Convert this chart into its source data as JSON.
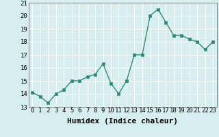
{
  "x": [
    0,
    1,
    2,
    3,
    4,
    5,
    6,
    7,
    8,
    9,
    10,
    11,
    12,
    13,
    14,
    15,
    16,
    17,
    18,
    19,
    20,
    21,
    22,
    23
  ],
  "y": [
    14.1,
    13.8,
    13.3,
    14.0,
    14.3,
    15.0,
    15.0,
    15.3,
    15.5,
    16.3,
    14.8,
    14.0,
    15.0,
    17.0,
    17.0,
    20.0,
    20.5,
    19.5,
    18.5,
    18.5,
    18.2,
    18.0,
    17.4,
    18.0
  ],
  "xlabel": "Humidex (Indice chaleur)",
  "ylim": [
    13,
    21
  ],
  "xlim": [
    -0.5,
    23.5
  ],
  "yticks": [
    13,
    14,
    15,
    16,
    17,
    18,
    19,
    20,
    21
  ],
  "xticks": [
    0,
    1,
    2,
    3,
    4,
    5,
    6,
    7,
    8,
    9,
    10,
    11,
    12,
    13,
    14,
    15,
    16,
    17,
    18,
    19,
    20,
    21,
    22,
    23
  ],
  "line_color": "#2e8b77",
  "marker_color": "#2e8b77",
  "bg_color": "#d6eef0",
  "grid_color": "#c8dfe0",
  "xlabel_fontsize": 8,
  "tick_fontsize": 6.5,
  "line_width": 1.0,
  "marker_size": 2.5
}
